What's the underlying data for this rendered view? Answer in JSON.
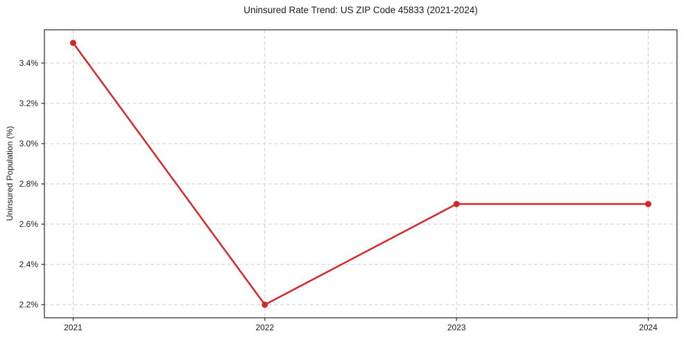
{
  "page": {
    "background_color": "#ffffff"
  },
  "chart_data": {
    "type": "line",
    "title": "Uninsured Rate Trend: US ZIP Code 45833 (2021-2024)",
    "xlabel": "",
    "ylabel": "Uninsured Population (%)",
    "x": [
      2021,
      2022,
      2023,
      2024
    ],
    "series": [
      {
        "name": "Uninsured rate",
        "values": [
          3.5,
          2.2,
          2.7,
          2.7
        ],
        "color": "#d62728",
        "line_width": 2.5,
        "marker": "circle",
        "marker_radius": 4.5
      }
    ],
    "xlim": [
      2020.85,
      2024.15
    ],
    "ylim": [
      2.135,
      3.565
    ],
    "xticks": {
      "values": [
        2021,
        2022,
        2023,
        2024
      ],
      "labels": [
        "2021",
        "2022",
        "2023",
        "2024"
      ]
    },
    "yticks": {
      "values": [
        2.2,
        2.4,
        2.6,
        2.8,
        3.0,
        3.2,
        3.4
      ],
      "labels": [
        "2.2%",
        "2.4%",
        "2.6%",
        "2.8%",
        "3.0%",
        "3.2%",
        "3.4%"
      ]
    },
    "grid": {
      "visible": true,
      "style": "dashed",
      "color": "#cccccc",
      "dash": "5,3.5"
    },
    "legend": {
      "visible": false
    },
    "frame": {
      "visible": true,
      "color": "#262626"
    },
    "tick_color": "#262626",
    "tick_label_color": "#1a1a1a"
  }
}
